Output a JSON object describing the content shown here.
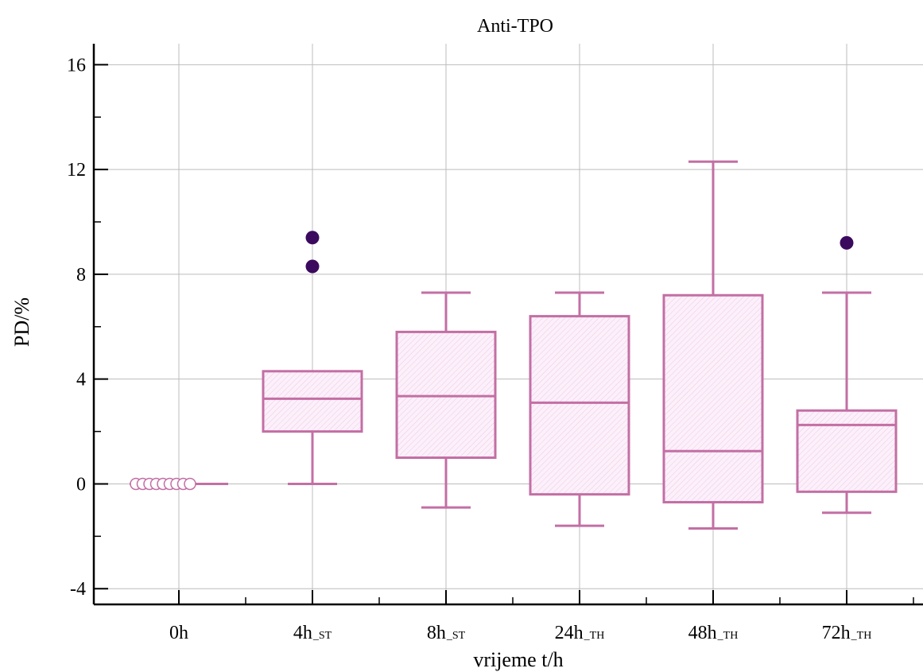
{
  "chart_data": {
    "type": "box",
    "title": "Anti-TPO",
    "xlabel": "vrijeme t/h",
    "ylabel": "PD/%",
    "ylim": [
      -4.6,
      16.8
    ],
    "yticks": [
      -4,
      0,
      4,
      8,
      12,
      16
    ],
    "grid": true,
    "colors": {
      "box": "#c36fa4",
      "fill": "#fbeefa",
      "outlier": "#3b0a5e",
      "grid": "#bcbcbc"
    },
    "categories": [
      {
        "main": "0h",
        "sub": ""
      },
      {
        "main": "4h",
        "sub": "_ST"
      },
      {
        "main": "8h",
        "sub": "_ST"
      },
      {
        "main": "24h",
        "sub": "_TH"
      },
      {
        "main": "48h",
        "sub": "_TH"
      },
      {
        "main": "72h",
        "sub": "_TH"
      }
    ],
    "boxes": [
      {
        "min": 0,
        "q1": 0,
        "median": 0,
        "q3": 0,
        "max": 0,
        "outliers": [],
        "zero_markers": 9
      },
      {
        "min": 0,
        "q1": 2.0,
        "median": 3.25,
        "q3": 4.3,
        "max": 4.3,
        "outliers": [
          8.3,
          9.4
        ]
      },
      {
        "min": -0.9,
        "q1": 1.0,
        "median": 3.35,
        "q3": 5.8,
        "max": 7.3,
        "outliers": []
      },
      {
        "min": -1.6,
        "q1": -0.4,
        "median": 3.1,
        "q3": 6.4,
        "max": 7.3,
        "outliers": []
      },
      {
        "min": -1.7,
        "q1": -0.7,
        "median": 1.25,
        "q3": 7.2,
        "max": 12.3,
        "outliers": []
      },
      {
        "min": -1.1,
        "q1": -0.3,
        "median": 2.25,
        "q3": 2.8,
        "max": 7.3,
        "outliers": [
          9.2
        ]
      }
    ]
  }
}
